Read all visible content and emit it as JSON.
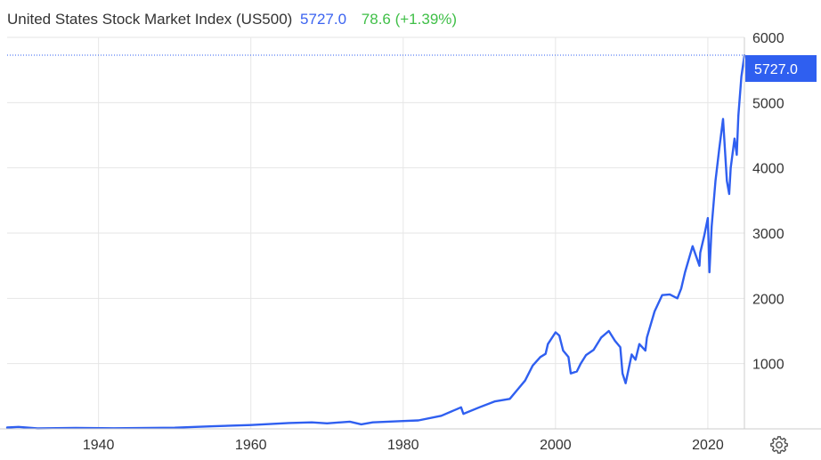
{
  "header": {
    "title": "United States Stock Market Index (US500)",
    "price": "5727.0",
    "change": "78.6 (+1.39%)"
  },
  "last_value_label": "5727.0",
  "colors": {
    "line": "#2f5ff0",
    "price_text": "#3b63f0",
    "change_positive": "#3fbf47",
    "grid": "#e6e6e6"
  },
  "settings_icon": "gear-icon",
  "chart_data": {
    "type": "line",
    "title": "",
    "xlabel": "",
    "ylabel": "",
    "xlim": [
      1928,
      2024.8
    ],
    "ylim": [
      0,
      6000
    ],
    "grid": true,
    "y_axis_position": "right",
    "x_ticks": [
      "1940",
      "1960",
      "1980",
      "2000",
      "2020"
    ],
    "y_ticks": [
      "1000",
      "2000",
      "3000",
      "4000",
      "5000",
      "6000"
    ],
    "series": [
      {
        "name": "",
        "x": [
          1928,
          1929.5,
          1932,
          1937,
          1942,
          1950,
          1955,
          1960,
          1965,
          1968,
          1970,
          1973,
          1974.5,
          1976,
          1980,
          1982,
          1985,
          1987.6,
          1987.9,
          1990,
          1992,
          1994,
          1995,
          1996,
          1997,
          1998,
          1998.7,
          1999,
          2000,
          2000.5,
          2001,
          2001.7,
          2002,
          2002.8,
          2003.3,
          2004,
          2005,
          2006,
          2007,
          2007.8,
          2008.5,
          2008.8,
          2009.2,
          2010,
          2010.5,
          2011,
          2011.8,
          2012,
          2013,
          2014,
          2015,
          2016,
          2016.5,
          2017,
          2018,
          2018.9,
          2019,
          2019.5,
          2020,
          2020.2,
          2020.5,
          2021,
          2021.5,
          2022,
          2022.5,
          2022.8,
          2023,
          2023.5,
          2023.8,
          2024,
          2024.4,
          2024.8
        ],
        "y": [
          20,
          30,
          7,
          15,
          9,
          18,
          40,
          58,
          90,
          100,
          85,
          110,
          70,
          100,
          120,
          130,
          200,
          330,
          230,
          330,
          420,
          460,
          600,
          740,
          970,
          1100,
          1150,
          1300,
          1480,
          1430,
          1200,
          1100,
          850,
          880,
          1000,
          1130,
          1210,
          1400,
          1500,
          1350,
          1250,
          850,
          700,
          1140,
          1060,
          1300,
          1200,
          1400,
          1800,
          2050,
          2060,
          2000,
          2150,
          2400,
          2800,
          2500,
          2700,
          2950,
          3230,
          2400,
          3100,
          3800,
          4300,
          4750,
          3800,
          3600,
          4000,
          4450,
          4200,
          4800,
          5400,
          5727
        ]
      }
    ]
  }
}
